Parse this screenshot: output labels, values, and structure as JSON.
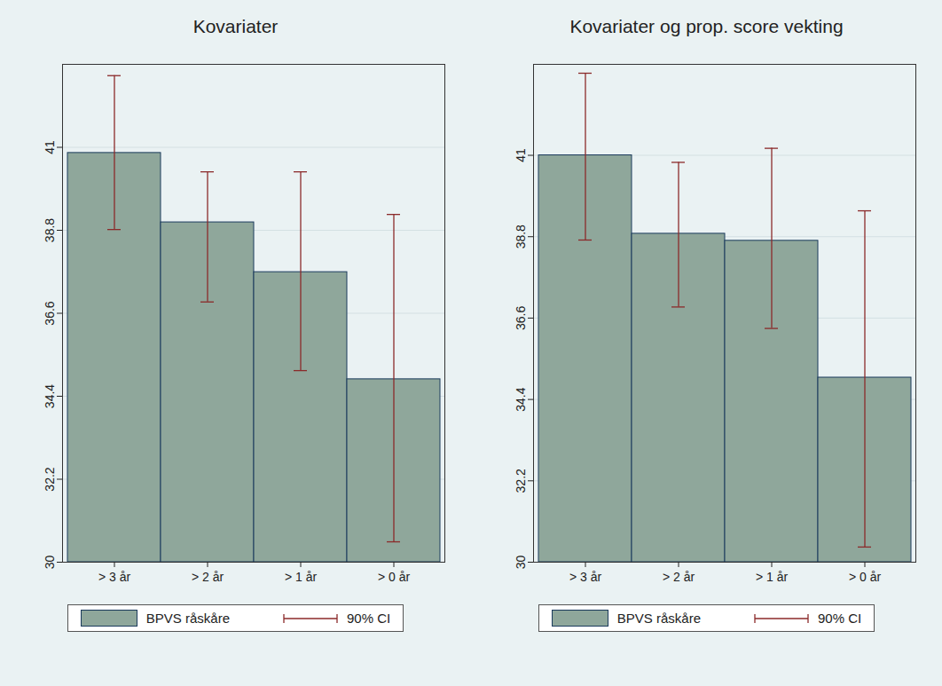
{
  "chart_data": [
    {
      "type": "bar",
      "title": "Kovariater",
      "categories": [
        "> 3 år",
        "> 2 år",
        "> 1 år",
        "> 0 år"
      ],
      "series": [
        {
          "name": "BPVS råskåre",
          "color": "#8fa79b",
          "values": [
            40.85,
            39.01,
            37.69,
            34.85
          ]
        }
      ],
      "error_bars": {
        "name": "90% CI",
        "color": "#8b2a2a",
        "low": [
          38.82,
          36.9,
          35.08,
          30.54
        ],
        "high": [
          42.9,
          40.35,
          40.35,
          39.22
        ]
      },
      "ylim": [
        30,
        43.2
      ],
      "yticks": [
        30,
        32.2,
        34.4,
        36.6,
        38.8,
        41
      ],
      "grid": true,
      "legend": "bottom"
    },
    {
      "type": "bar",
      "title": "Kovariater og prop. score vekting",
      "categories": [
        "> 3 år",
        "> 2 år",
        "> 1 år",
        "> 0 år"
      ],
      "series": [
        {
          "name": "BPVS råskåre",
          "color": "#8fa79b",
          "values": [
            41.0,
            38.88,
            38.69,
            34.99
          ]
        }
      ],
      "error_bars": {
        "name": "90% CI",
        "color": "#8b2a2a",
        "low": [
          38.71,
          36.9,
          36.32,
          30.41
        ],
        "high": [
          43.22,
          40.81,
          41.19,
          39.5
        ]
      },
      "ylim": [
        30,
        43.46
      ],
      "yticks": [
        30,
        32.2,
        34.4,
        36.6,
        38.8,
        41
      ],
      "grid": true,
      "legend": "bottom"
    }
  ]
}
